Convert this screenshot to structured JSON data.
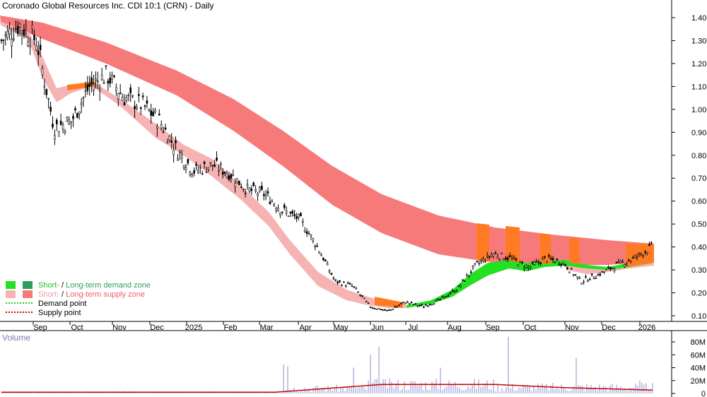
{
  "title": "Coronado Global Resources Inc. CDI 10:1 (CRN) - Daily",
  "price_panel": {
    "y_ticks": [
      "1.40",
      "1.30",
      "1.20",
      "1.10",
      "1.00",
      "0.90",
      "0.80",
      "0.70",
      "0.60",
      "0.50",
      "0.40",
      "0.30",
      "0.20",
      "0.10"
    ],
    "x_ticks": [
      "Sep",
      "Oct",
      "Nov",
      "Dec",
      "2025",
      "Feb",
      "Mar",
      "Apr",
      "May",
      "Jun",
      "Jul",
      "Aug",
      "Sep",
      "Oct",
      "Nov",
      "Dec",
      "2026"
    ]
  },
  "legend": {
    "zone_line1": {
      "short": "Short-",
      "rest": " / ",
      "long": "Long-term demand zone"
    },
    "zone_line2": {
      "short": "Short-",
      "rest": " / ",
      "long": "Long-term supply zone"
    },
    "demand_point": "Demand point",
    "supply_point": "Supply point"
  },
  "volume_panel": {
    "label": "Volume",
    "y_ticks": [
      "80M",
      "60M",
      "40M",
      "20M",
      "0"
    ]
  },
  "colors": {
    "long_supply": "#f77a7a",
    "short_supply": "#f6b3b3",
    "short_demand": "#22e022",
    "long_demand": "#2e9c5e",
    "orange_zone": "#ff7a22",
    "volume_bar": "#8c8cd0",
    "volume_ma": "#c80000",
    "candle": "#000000"
  },
  "chart_data": {
    "type": "candlestick",
    "title": "Coronado Global Resources Inc. CDI 10:1 (CRN) - Daily",
    "ylim": [
      0.05,
      1.45
    ],
    "volume_ylim": [
      0,
      90
    ],
    "volume_unit": "M",
    "price_path": [
      [
        "Aug",
        1.3
      ],
      [
        "Aug-end",
        1.37
      ],
      [
        "Sep-early",
        1.3
      ],
      [
        "Sep-mid",
        0.92
      ],
      [
        "Sep-late",
        0.95
      ],
      [
        "Oct-start",
        1.1
      ],
      [
        "Oct-mid",
        1.15
      ],
      [
        "Oct-end",
        1.05
      ],
      [
        "Nov",
        1.02
      ],
      [
        "Nov-end",
        0.95
      ],
      [
        "Dec-mid",
        0.82
      ],
      [
        "Dec-end",
        0.73
      ],
      [
        "2025",
        0.76
      ],
      [
        "Jan-end",
        0.72
      ],
      [
        "Feb",
        0.65
      ],
      [
        "Feb-end",
        0.63
      ],
      [
        "Mar",
        0.56
      ],
      [
        "Mar-end",
        0.52
      ],
      [
        "Apr",
        0.4
      ],
      [
        "Apr-end",
        0.25
      ],
      [
        "May",
        0.23
      ],
      [
        "May-end",
        0.14
      ],
      [
        "Jun",
        0.12
      ],
      [
        "Jun-mid",
        0.16
      ],
      [
        "Jul",
        0.14
      ],
      [
        "Jul-end",
        0.17
      ],
      [
        "Aug",
        0.22
      ],
      [
        "Aug-mid",
        0.32
      ],
      [
        "Sep",
        0.37
      ],
      [
        "Sep-mid",
        0.35
      ],
      [
        "Oct",
        0.31
      ],
      [
        "Oct-mid",
        0.35
      ],
      [
        "Nov",
        0.33
      ],
      [
        "Nov-mid",
        0.25
      ],
      [
        "Dec",
        0.28
      ],
      [
        "Dec-mid",
        0.32
      ],
      [
        "2026",
        0.35
      ],
      [
        "Jan-mid",
        0.4
      ]
    ],
    "legend": [
      "Short- / Long-term demand zone",
      "Short- / Long-term supply zone",
      "Demand point",
      "Supply point"
    ]
  }
}
